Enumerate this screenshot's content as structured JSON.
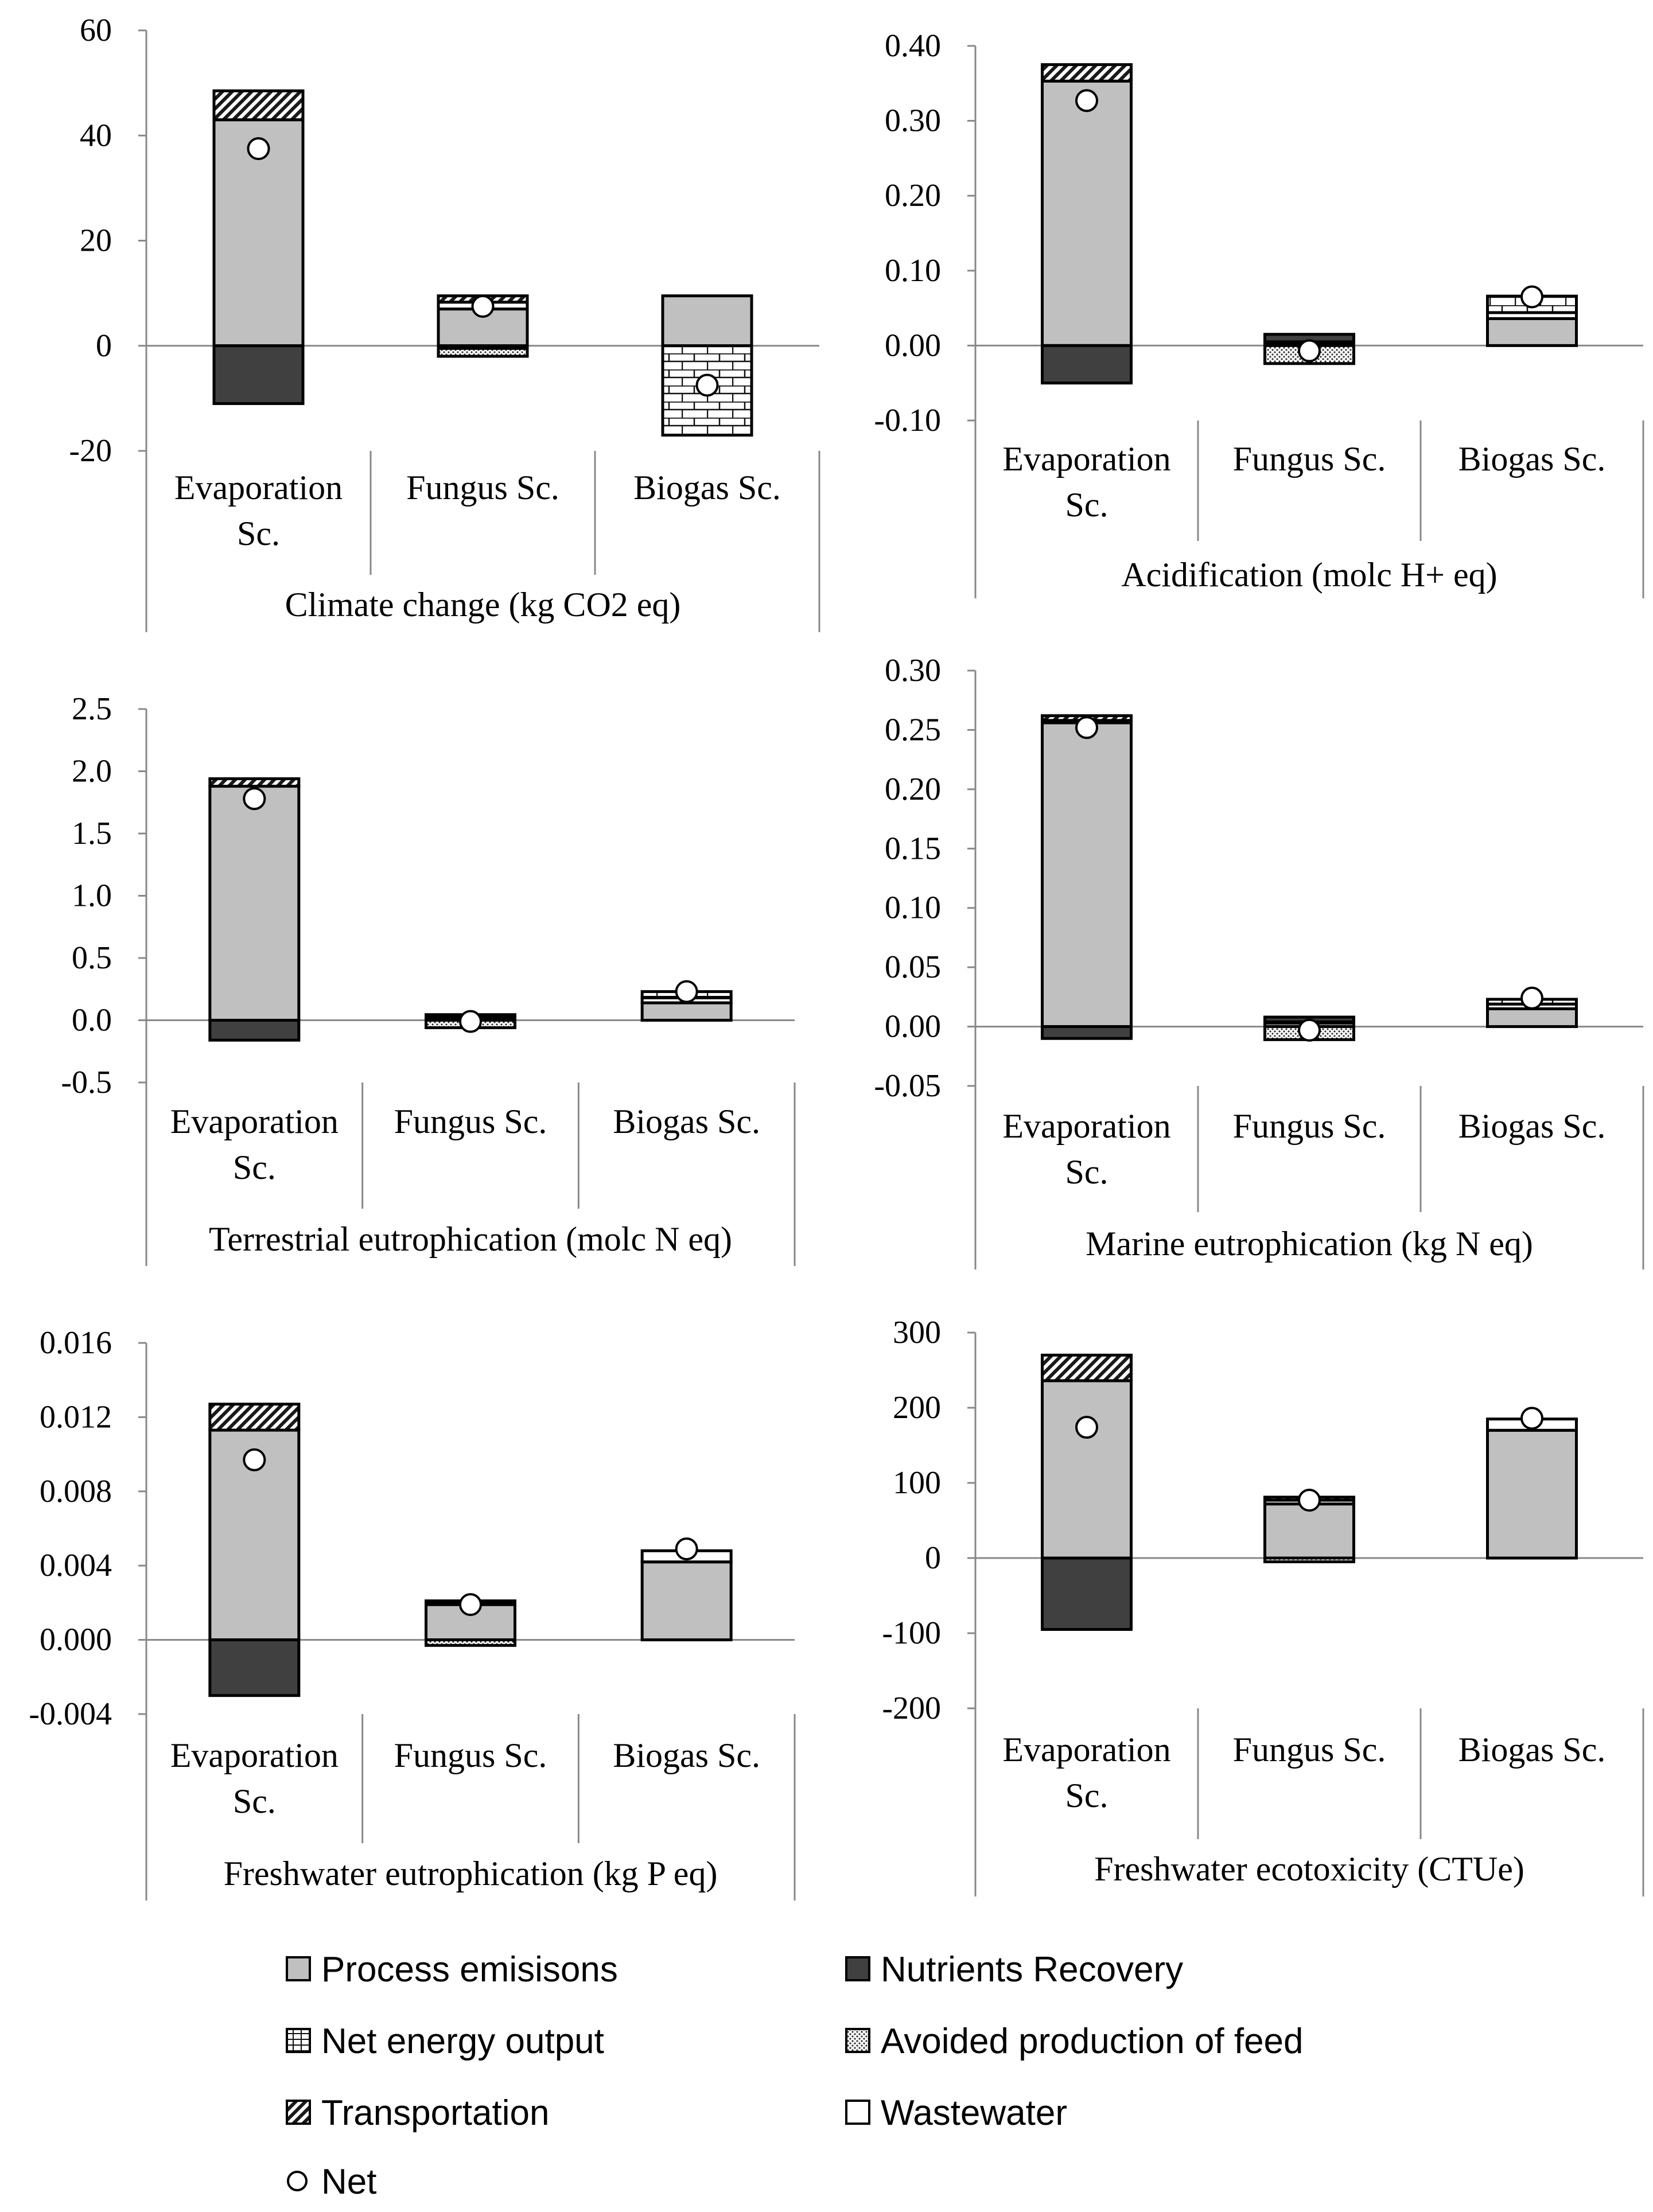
{
  "categories": [
    "Evaporation Sc.",
    "Fungus Sc.",
    "Biogas Sc."
  ],
  "components": [
    {
      "key": "process",
      "label": "Process emisisons",
      "fill": "#c0c0c0",
      "pattern": "solid"
    },
    {
      "key": "nutrients",
      "label": "Nutrients Recovery",
      "fill": "#404040",
      "pattern": "solid"
    },
    {
      "key": "energy",
      "label": "Net energy output",
      "fill": "#ffffff",
      "pattern": "brick"
    },
    {
      "key": "feed",
      "label": "Avoided production of feed",
      "fill": "#ffffff",
      "pattern": "dots"
    },
    {
      "key": "transport",
      "label": "Transportation",
      "fill": "#ffffff",
      "pattern": "diag"
    },
    {
      "key": "wastewater",
      "label": "Wastewater",
      "fill": "#ffffff",
      "pattern": "solid"
    },
    {
      "key": "net",
      "label": "Net",
      "fill": "#ffffff",
      "pattern": "circle"
    }
  ],
  "chart_data": [
    {
      "type": "bar",
      "stacked": true,
      "title": "Climate change (kg CO2 eq)",
      "ylim": [
        -20,
        60
      ],
      "yticks": [
        "60",
        "40",
        "20",
        "0",
        "-20"
      ],
      "ytick_values": [
        60,
        40,
        20,
        0,
        -20
      ],
      "categories": [
        "Evaporation Sc.",
        "Fungus Sc.",
        "Biogas Sc."
      ],
      "series": [
        {
          "name": "Process emisisons",
          "key": "process",
          "values": [
            43,
            7,
            9.5
          ]
        },
        {
          "name": "Nutrients Recovery",
          "key": "nutrients",
          "values": [
            -11,
            0,
            0
          ]
        },
        {
          "name": "Net energy output",
          "key": "energy",
          "values": [
            0,
            -0.5,
            -17
          ]
        },
        {
          "name": "Avoided production of feed",
          "key": "feed",
          "values": [
            0,
            -1.5,
            0
          ]
        },
        {
          "name": "Transportation",
          "key": "transport",
          "values": [
            5.5,
            1.2,
            0
          ]
        },
        {
          "name": "Wastewater",
          "key": "wastewater",
          "values": [
            0,
            1.3,
            0
          ]
        }
      ],
      "net": [
        37.5,
        7.5,
        -7.5
      ]
    },
    {
      "type": "bar",
      "stacked": true,
      "title": "Acidification (molc H+ eq)",
      "ylim": [
        -0.1,
        0.4
      ],
      "yticks": [
        "0.40",
        "0.30",
        "0.20",
        "0.10",
        "0.00",
        "-0.10"
      ],
      "ytick_values": [
        0.4,
        0.3,
        0.2,
        0.1,
        0,
        -0.1
      ],
      "categories": [
        "Evaporation Sc.",
        "Fungus Sc.",
        "Biogas Sc."
      ],
      "series": [
        {
          "name": "Process emisisons",
          "key": "process",
          "values": [
            0.353,
            0.003,
            0.036
          ]
        },
        {
          "name": "Nutrients Recovery",
          "key": "nutrients",
          "values": [
            -0.05,
            0.01,
            0
          ]
        },
        {
          "name": "Net energy output",
          "key": "energy",
          "values": [
            0,
            0,
            0.022
          ]
        },
        {
          "name": "Avoided production of feed",
          "key": "feed",
          "values": [
            0,
            -0.024,
            0
          ]
        },
        {
          "name": "Transportation",
          "key": "transport",
          "values": [
            0.022,
            0.002,
            0
          ]
        },
        {
          "name": "Wastewater",
          "key": "wastewater",
          "values": [
            0,
            0,
            0.008
          ]
        }
      ],
      "net": [
        0.327,
        -0.007,
        0.065
      ]
    },
    {
      "type": "bar",
      "stacked": true,
      "title": "Terrestrial eutrophication (molc N eq)",
      "ylim": [
        -0.5,
        2.5
      ],
      "yticks": [
        "2.5",
        "2.0",
        "1.5",
        "1.0",
        "0.5",
        "0.0",
        "-0.5"
      ],
      "ytick_values": [
        2.5,
        2.0,
        1.5,
        1.0,
        0.5,
        0,
        -0.5
      ],
      "categories": [
        "Evaporation Sc.",
        "Fungus Sc.",
        "Biogas Sc."
      ],
      "series": [
        {
          "name": "Process emisisons",
          "key": "process",
          "values": [
            1.88,
            0.02,
            0.14
          ]
        },
        {
          "name": "Nutrients Recovery",
          "key": "nutrients",
          "values": [
            -0.16,
            0.015,
            0
          ]
        },
        {
          "name": "Net energy output",
          "key": "energy",
          "values": [
            0,
            0,
            0.05
          ]
        },
        {
          "name": "Avoided production of feed",
          "key": "feed",
          "values": [
            0,
            -0.06,
            0
          ]
        },
        {
          "name": "Transportation",
          "key": "transport",
          "values": [
            0.06,
            0.01,
            0
          ]
        },
        {
          "name": "Wastewater",
          "key": "wastewater",
          "values": [
            0,
            0,
            0.04
          ]
        }
      ],
      "net": [
        1.78,
        -0.01,
        0.23
      ]
    },
    {
      "type": "bar",
      "stacked": true,
      "title": "Marine eutrophication (kg N eq)",
      "ylim": [
        -0.05,
        0.3
      ],
      "yticks": [
        "0.30",
        "0.25",
        "0.20",
        "0.15",
        "0.10",
        "0.05",
        "0.00",
        "-0.05"
      ],
      "ytick_values": [
        0.3,
        0.25,
        0.2,
        0.15,
        0.1,
        0.05,
        0,
        -0.05
      ],
      "categories": [
        "Evaporation Sc.",
        "Fungus Sc.",
        "Biogas Sc."
      ],
      "series": [
        {
          "name": "Process emisisons",
          "key": "process",
          "values": [
            0.256,
            0.003,
            0.015
          ]
        },
        {
          "name": "Nutrients Recovery",
          "key": "nutrients",
          "values": [
            -0.01,
            0.004,
            0
          ]
        },
        {
          "name": "Net energy output",
          "key": "energy",
          "values": [
            0,
            0,
            0.004
          ]
        },
        {
          "name": "Avoided production of feed",
          "key": "feed",
          "values": [
            0,
            -0.011,
            0
          ]
        },
        {
          "name": "Transportation",
          "key": "transport",
          "values": [
            0.004,
            0.001,
            0
          ]
        },
        {
          "name": "Wastewater",
          "key": "wastewater",
          "values": [
            0.002,
            0,
            0.004
          ]
        }
      ],
      "net": [
        0.252,
        -0.003,
        0.024
      ]
    },
    {
      "type": "bar",
      "stacked": true,
      "title": "Freshwater eutrophication (kg P eq)",
      "ylim": [
        -0.004,
        0.016
      ],
      "yticks": [
        "0.016",
        "0.012",
        "0.008",
        "0.004",
        "0.000",
        "-0.004"
      ],
      "ytick_values": [
        0.016,
        0.012,
        0.008,
        0.004,
        0,
        -0.004
      ],
      "categories": [
        "Evaporation Sc.",
        "Fungus Sc.",
        "Biogas Sc."
      ],
      "series": [
        {
          "name": "Process emisisons",
          "key": "process",
          "values": [
            0.0113,
            0.0019,
            0.0042
          ]
        },
        {
          "name": "Nutrients Recovery",
          "key": "nutrients",
          "values": [
            -0.003,
            0,
            0
          ]
        },
        {
          "name": "Net energy output",
          "key": "energy",
          "values": [
            0,
            0,
            0
          ]
        },
        {
          "name": "Avoided production of feed",
          "key": "feed",
          "values": [
            0,
            -0.0003,
            0
          ]
        },
        {
          "name": "Transportation",
          "key": "transport",
          "values": [
            0.0014,
            0.0001,
            0
          ]
        },
        {
          "name": "Wastewater",
          "key": "wastewater",
          "values": [
            0,
            0.0001,
            0.0006
          ]
        }
      ],
      "net": [
        0.0097,
        0.0019,
        0.0049
      ]
    },
    {
      "type": "bar",
      "stacked": true,
      "title": "Freshwater ecotoxicity (CTUe)",
      "ylim": [
        -200,
        300
      ],
      "yticks": [
        "300",
        "200",
        "100",
        "0",
        "-100",
        "-200"
      ],
      "ytick_values": [
        300,
        200,
        100,
        0,
        -100,
        -200
      ],
      "categories": [
        "Evaporation Sc.",
        "Fungus Sc.",
        "Biogas Sc."
      ],
      "series": [
        {
          "name": "Process emisisons",
          "key": "process",
          "values": [
            236,
            72,
            170
          ]
        },
        {
          "name": "Nutrients Recovery",
          "key": "nutrients",
          "values": [
            -95,
            0,
            0
          ]
        },
        {
          "name": "Net energy output",
          "key": "energy",
          "values": [
            0,
            0,
            0
          ]
        },
        {
          "name": "Avoided production of feed",
          "key": "feed",
          "values": [
            0,
            -5,
            0
          ]
        },
        {
          "name": "Transportation",
          "key": "transport",
          "values": [
            34,
            4,
            0
          ]
        },
        {
          "name": "Wastewater",
          "key": "wastewater",
          "values": [
            0,
            5,
            15
          ]
        }
      ],
      "net": [
        174,
        77,
        186
      ]
    }
  ]
}
